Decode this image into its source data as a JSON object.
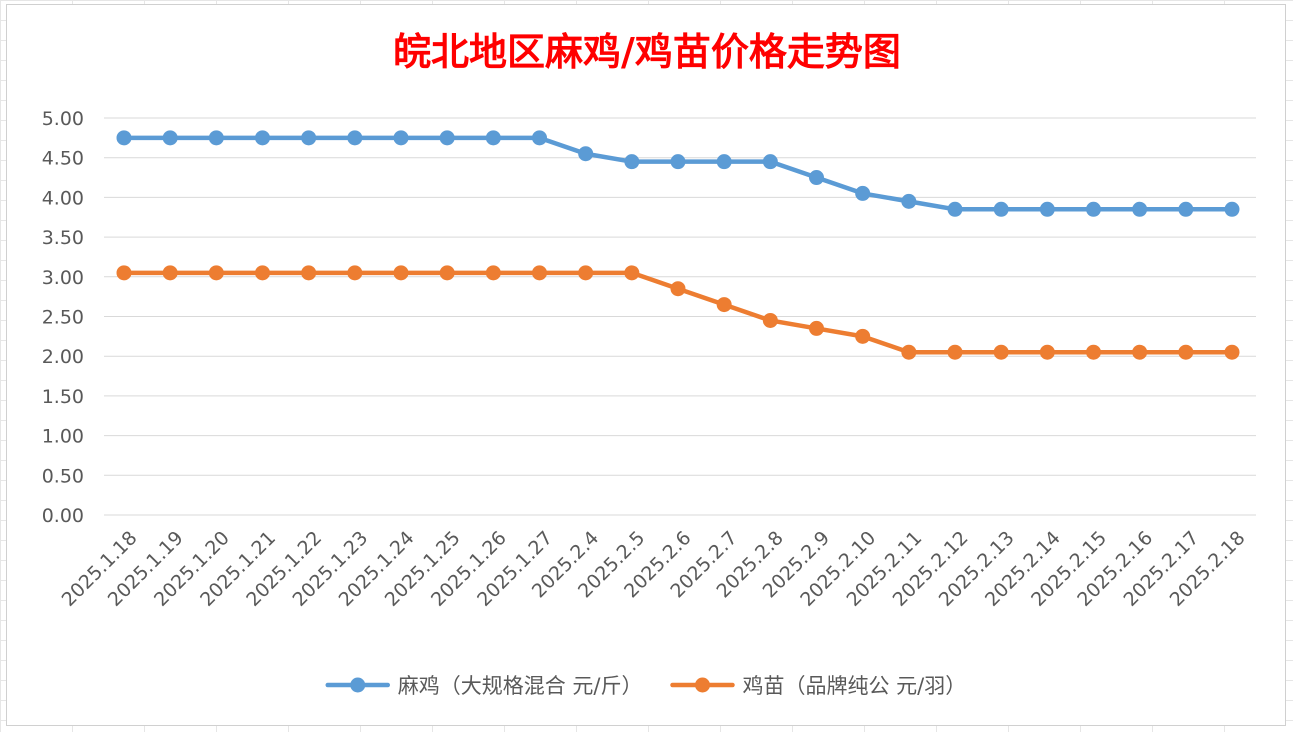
{
  "chart_data": {
    "type": "line",
    "title": "皖北地区麻鸡/鸡苗价格走势图",
    "xlabel": "",
    "ylabel": "",
    "ylim": [
      0,
      5
    ],
    "y_ticks": [
      "0.00",
      "0.50",
      "1.00",
      "1.50",
      "2.00",
      "2.50",
      "3.00",
      "3.50",
      "4.00",
      "4.50",
      "5.00"
    ],
    "grid": true,
    "legend_position": "bottom",
    "categories": [
      "2025.1.18",
      "2025.1.19",
      "2025.1.20",
      "2025.1.21",
      "2025.1.22",
      "2025.1.23",
      "2025.1.24",
      "2025.1.25",
      "2025.1.26",
      "2025.1.27",
      "2025.2.4",
      "2025.2.5",
      "2025.2.6",
      "2025.2.7",
      "2025.2.8",
      "2025.2.9",
      "2025.2.10",
      "2025.2.11",
      "2025.2.12",
      "2025.2.13",
      "2025.2.14",
      "2025.2.15",
      "2025.2.16",
      "2025.2.17",
      "2025.2.18"
    ],
    "series": [
      {
        "name": "麻鸡（大规格混合 元/斤）",
        "color": "#5b9bd5",
        "values": [
          4.75,
          4.75,
          4.75,
          4.75,
          4.75,
          4.75,
          4.75,
          4.75,
          4.75,
          4.75,
          4.55,
          4.45,
          4.45,
          4.45,
          4.45,
          4.25,
          4.05,
          3.95,
          3.85,
          3.85,
          3.85,
          3.85,
          3.85,
          3.85,
          3.85
        ]
      },
      {
        "name": "鸡苗（品牌纯公 元/羽）",
        "color": "#ed7d31",
        "values": [
          3.05,
          3.05,
          3.05,
          3.05,
          3.05,
          3.05,
          3.05,
          3.05,
          3.05,
          3.05,
          3.05,
          3.05,
          2.85,
          2.65,
          2.45,
          2.35,
          2.25,
          2.05,
          2.05,
          2.05,
          2.05,
          2.05,
          2.05,
          2.05,
          2.05
        ]
      }
    ]
  }
}
